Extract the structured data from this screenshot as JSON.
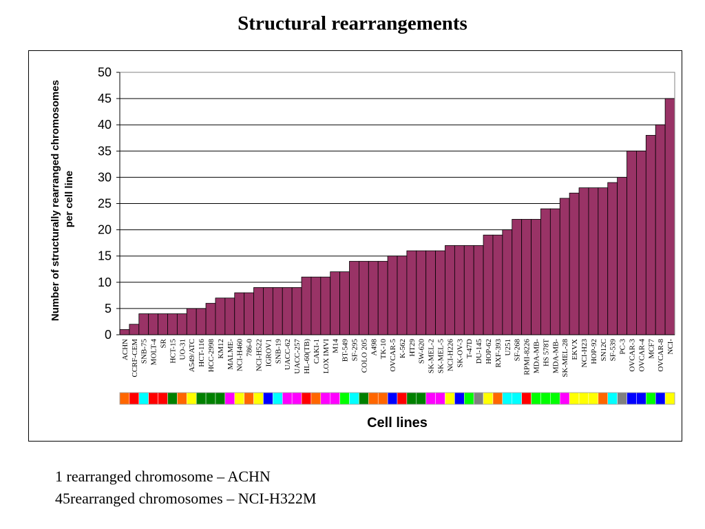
{
  "slide": {
    "title": "Structural rearrangements",
    "notes": [
      "1 rearranged chromosome – ACHN",
      "45rearranged chromosomes – NCI-H322M"
    ]
  },
  "chart_data": {
    "type": "bar",
    "title": "Structural rearrangements",
    "xlabel": "Cell lines",
    "ylabel": "Number of structurally rearranged chromosomes per cell line",
    "ylim": [
      0,
      50
    ],
    "yticks": [
      0,
      5,
      10,
      15,
      20,
      25,
      30,
      35,
      40,
      45,
      50
    ],
    "grid": true,
    "legend": "none",
    "bar_color": "#993366",
    "categories": [
      "ACHN",
      "CCRF-CEM",
      "SNB-75",
      "MOLT-4",
      "SR",
      "HCT-15",
      "UO-31",
      "A549/ATC",
      "HCT-116",
      "HCC-2998",
      "KM12",
      "MALME-",
      "NCI-H460",
      "786-0",
      "NCI-H522",
      "IGROV1",
      "SNB-19",
      "UACC-62",
      "UACC-257",
      "HL-60(TB)",
      "CAKI-1",
      "LOX IMVI",
      "M14",
      "BT-549",
      "SF-295",
      "COLO 205",
      "A498",
      "TK-10",
      "OVCAR-5",
      "K-562",
      "HT29",
      "SW-620",
      "SK-MEL-2",
      "SK-MEL-5",
      "NCI-H226",
      "SK-OV-3",
      "T-47D",
      "DU-145",
      "HOP-62",
      "RXF-393",
      "U251",
      "SF-268",
      "RPMI-8226",
      "MDA-MB-",
      "HS 578T",
      "MDA-MB-",
      "SK-MEL-28",
      "EKVX",
      "NCI-H23",
      "HOP-92",
      "SN12C",
      "SF-539",
      "PC-3",
      "OVCAR-3",
      "OVCAR-4",
      "MCF7",
      "OVCAR-8",
      "NCI-"
    ],
    "values": [
      1,
      2,
      4,
      4,
      4,
      4,
      4,
      5,
      5,
      6,
      7,
      7,
      8,
      8,
      9,
      9,
      9,
      9,
      9,
      11,
      11,
      11,
      12,
      12,
      14,
      14,
      14,
      14,
      15,
      15,
      16,
      16,
      16,
      16,
      17,
      17,
      17,
      17,
      19,
      19,
      20,
      22,
      22,
      22,
      24,
      24,
      26,
      27,
      28,
      28,
      28,
      29,
      30,
      35,
      35,
      38,
      40,
      45
    ],
    "tissue_colors": [
      "#ff6600",
      "#ff0000",
      "#00ffff",
      "#ff0000",
      "#ff0000",
      "#008000",
      "#ff6600",
      "#ffff00",
      "#008000",
      "#008000",
      "#008000",
      "#ff00ff",
      "#ffff00",
      "#ff6600",
      "#ffff00",
      "#0000ff",
      "#00ffff",
      "#ff00ff",
      "#ff00ff",
      "#ff0000",
      "#ff6600",
      "#ff00ff",
      "#ff00ff",
      "#00ff00",
      "#00ffff",
      "#008000",
      "#ff6600",
      "#ff6600",
      "#0000ff",
      "#ff0000",
      "#008000",
      "#008000",
      "#ff00ff",
      "#ff00ff",
      "#ffff00",
      "#0000ff",
      "#00ff00",
      "#808080",
      "#ffff00",
      "#ff6600",
      "#00ffff",
      "#00ffff",
      "#ff0000",
      "#00ff00",
      "#00ff00",
      "#00ff00",
      "#ff00ff",
      "#ffff00",
      "#ffff00",
      "#ffff00",
      "#ff6600",
      "#00ffff",
      "#808080",
      "#0000ff",
      "#0000ff",
      "#00ff00",
      "#0000ff",
      "#ffff00"
    ]
  }
}
